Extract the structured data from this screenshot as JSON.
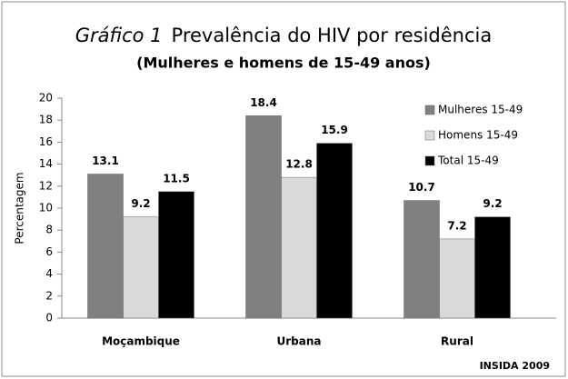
{
  "chart_data": {
    "type": "bar",
    "title_label": "Gráfico 1",
    "title": "Prevalência do HIV por residência",
    "subtitle": "(Mulheres e homens de 15-49 anos)",
    "y_label": "Percentagem",
    "source": "INSIDA 2009",
    "categories": [
      "Moçambique",
      "Urbana",
      "Rural"
    ],
    "series": [
      {
        "name": "Mulheres 15-49",
        "color": "#808080",
        "values": [
          13.1,
          18.4,
          10.7
        ]
      },
      {
        "name": "Homens 15-49",
        "color": "#d9d9d9",
        "values": [
          9.2,
          12.8,
          7.2
        ]
      },
      {
        "name": "Total 15-49",
        "color": "#000000",
        "values": [
          11.5,
          15.9,
          9.2
        ]
      }
    ],
    "ylim": [
      0,
      20
    ],
    "yticks": [
      0,
      2,
      4,
      6,
      8,
      10,
      12,
      14,
      16,
      18,
      20
    ],
    "legend": "upper right"
  }
}
